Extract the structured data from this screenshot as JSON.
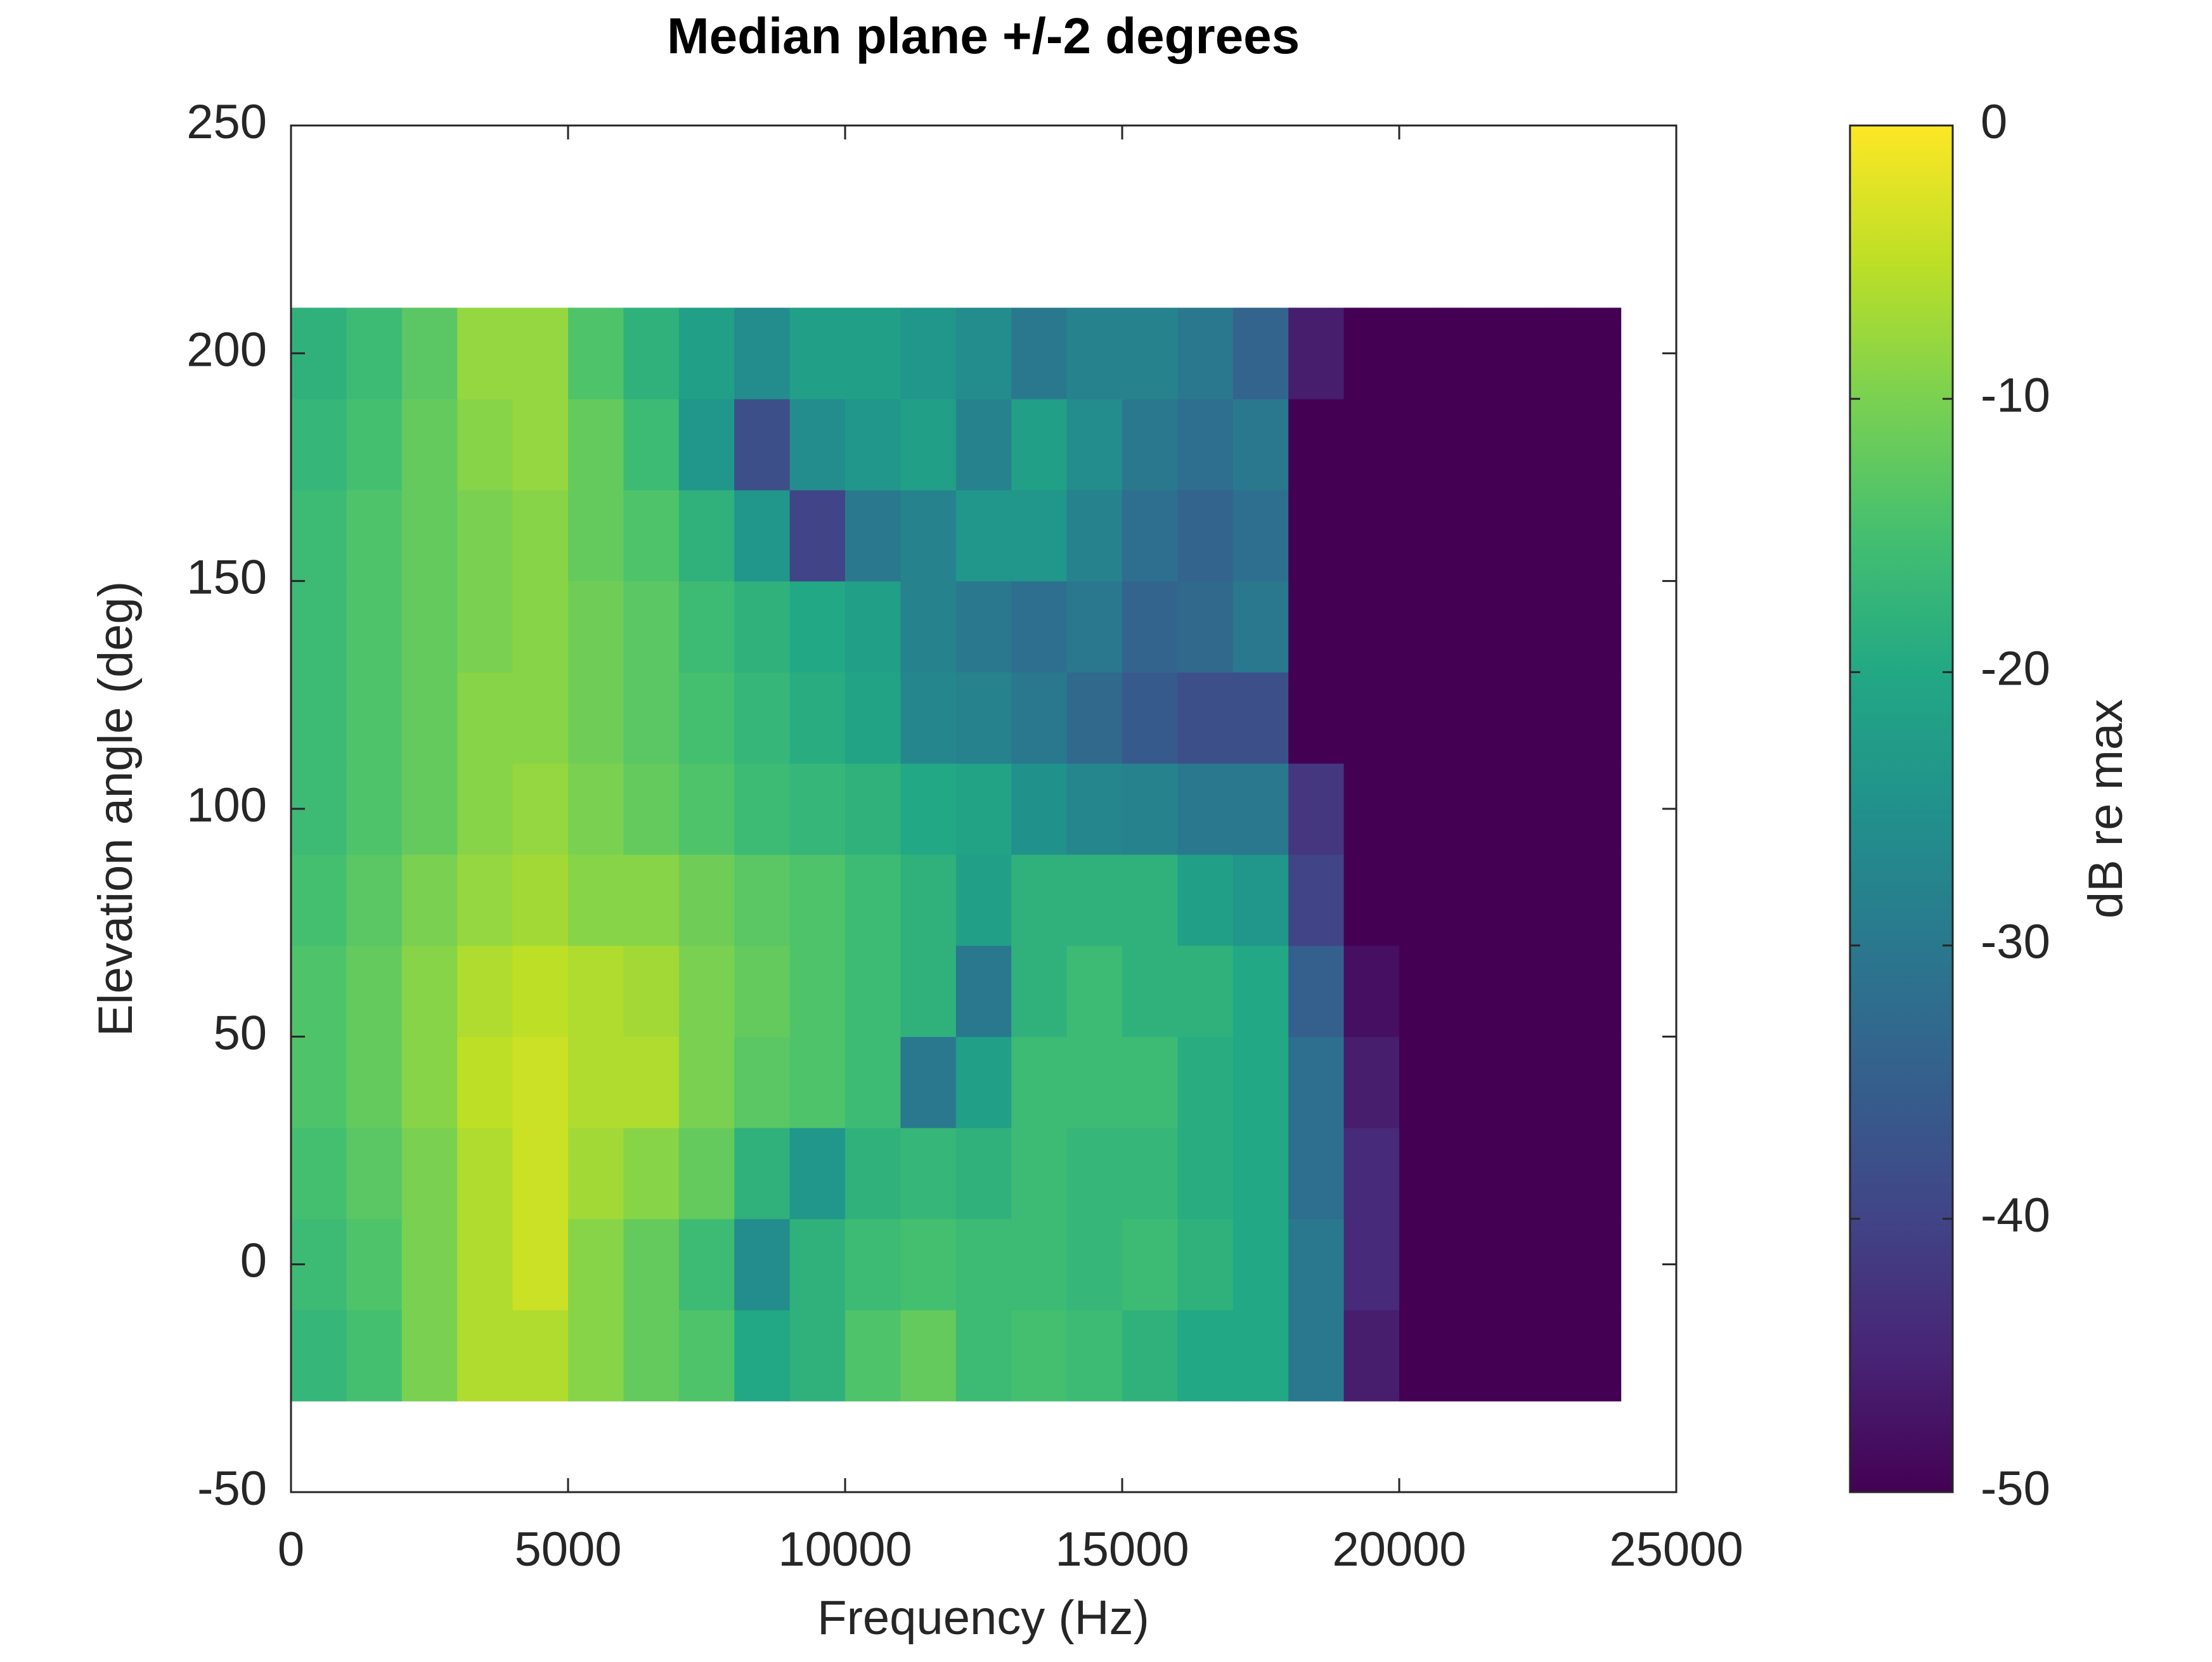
{
  "chart_data": {
    "type": "heatmap",
    "title": "Median plane +/-2 degrees",
    "x_label": "Frequency (Hz)",
    "y_label": "Elevation angle (deg)",
    "colorbar_label": "dB re max",
    "colormap": "viridis",
    "x": [
      500,
      1500,
      2500,
      3500,
      4500,
      5500,
      6500,
      7500,
      8500,
      9500,
      10500,
      11500,
      12500,
      13500,
      14500,
      15500,
      16500,
      17500,
      18500,
      19500,
      20500,
      21500,
      22500,
      23500
    ],
    "y": [
      -20,
      0,
      20,
      40,
      60,
      80,
      100,
      120,
      140,
      160,
      180,
      200
    ],
    "z": [
      [
        -17,
        -15,
        -10,
        -6,
        -6,
        -9,
        -12,
        -14,
        -20,
        -18,
        -14,
        -12,
        -16,
        -15,
        -16,
        -18,
        -20,
        -20,
        -30,
        -46,
        -50,
        -50,
        -50,
        -50
      ],
      [
        -16,
        -14,
        -10,
        -6,
        -4,
        -9,
        -12,
        -16,
        -26,
        -18,
        -16,
        -15,
        -16,
        -16,
        -17,
        -16,
        -18,
        -20,
        -30,
        -44,
        -50,
        -50,
        -50,
        -50
      ],
      [
        -15,
        -13,
        -10,
        -6,
        -4,
        -7,
        -9,
        -12,
        -18,
        -24,
        -18,
        -17,
        -18,
        -16,
        -17,
        -17,
        -19,
        -20,
        -32,
        -44,
        -50,
        -50,
        -50,
        -50
      ],
      [
        -14,
        -12,
        -9,
        -5,
        -4,
        -6,
        -6,
        -10,
        -13,
        -14,
        -16,
        -30,
        -22,
        -16,
        -16,
        -16,
        -19,
        -20,
        -32,
        -46,
        -50,
        -50,
        -50,
        -50
      ],
      [
        -14,
        -12,
        -9,
        -6,
        -5,
        -6,
        -7,
        -10,
        -12,
        -14,
        -16,
        -18,
        -30,
        -18,
        -16,
        -18,
        -18,
        -20,
        -35,
        -48,
        -50,
        -50,
        -50,
        -50
      ],
      [
        -15,
        -13,
        -10,
        -8,
        -7,
        -9,
        -9,
        -11,
        -13,
        -14,
        -16,
        -18,
        -22,
        -18,
        -18,
        -18,
        -22,
        -24,
        -40,
        -50,
        -50,
        -50,
        -50,
        -50
      ],
      [
        -16,
        -14,
        -12,
        -9,
        -8,
        -10,
        -12,
        -14,
        -16,
        -17,
        -18,
        -20,
        -21,
        -25,
        -27,
        -28,
        -30,
        -30,
        -42,
        -50,
        -50,
        -50,
        -50,
        -50
      ],
      [
        -16,
        -14,
        -12,
        -9,
        -9,
        -11,
        -13,
        -15,
        -17,
        -19,
        -21,
        -27,
        -28,
        -30,
        -33,
        -36,
        -38,
        -38,
        -50,
        -50,
        -50,
        -50,
        -50,
        -50
      ],
      [
        -16,
        -14,
        -12,
        -10,
        -9,
        -11,
        -13,
        -16,
        -18,
        -20,
        -22,
        -28,
        -30,
        -32,
        -30,
        -34,
        -33,
        -30,
        -50,
        -50,
        -50,
        -50,
        -50,
        -50
      ],
      [
        -16,
        -14,
        -12,
        -10,
        -9,
        -12,
        -14,
        -18,
        -24,
        -40,
        -30,
        -28,
        -24,
        -24,
        -28,
        -32,
        -34,
        -32,
        -50,
        -50,
        -50,
        -50,
        -50,
        -50
      ],
      [
        -17,
        -15,
        -12,
        -9,
        -8,
        -12,
        -16,
        -24,
        -38,
        -26,
        -24,
        -22,
        -28,
        -22,
        -26,
        -30,
        -32,
        -30,
        -50,
        -50,
        -50,
        -50,
        -50,
        -50
      ],
      [
        -18,
        -16,
        -13,
        -8,
        -8,
        -14,
        -18,
        -22,
        -26,
        -22,
        -22,
        -24,
        -26,
        -30,
        -28,
        -28,
        -30,
        -34,
        -46,
        -50,
        -50,
        -50,
        -50,
        -50
      ]
    ],
    "xlim": [
      0,
      25000
    ],
    "xticks": [
      0,
      5000,
      10000,
      15000,
      20000,
      25000
    ],
    "ylim": [
      -50,
      250
    ],
    "yticks": [
      -50,
      0,
      50,
      100,
      150,
      200,
      250
    ],
    "clim": [
      -50,
      0
    ],
    "cticks": [
      -50,
      -40,
      -30,
      -20,
      -10,
      0
    ]
  }
}
